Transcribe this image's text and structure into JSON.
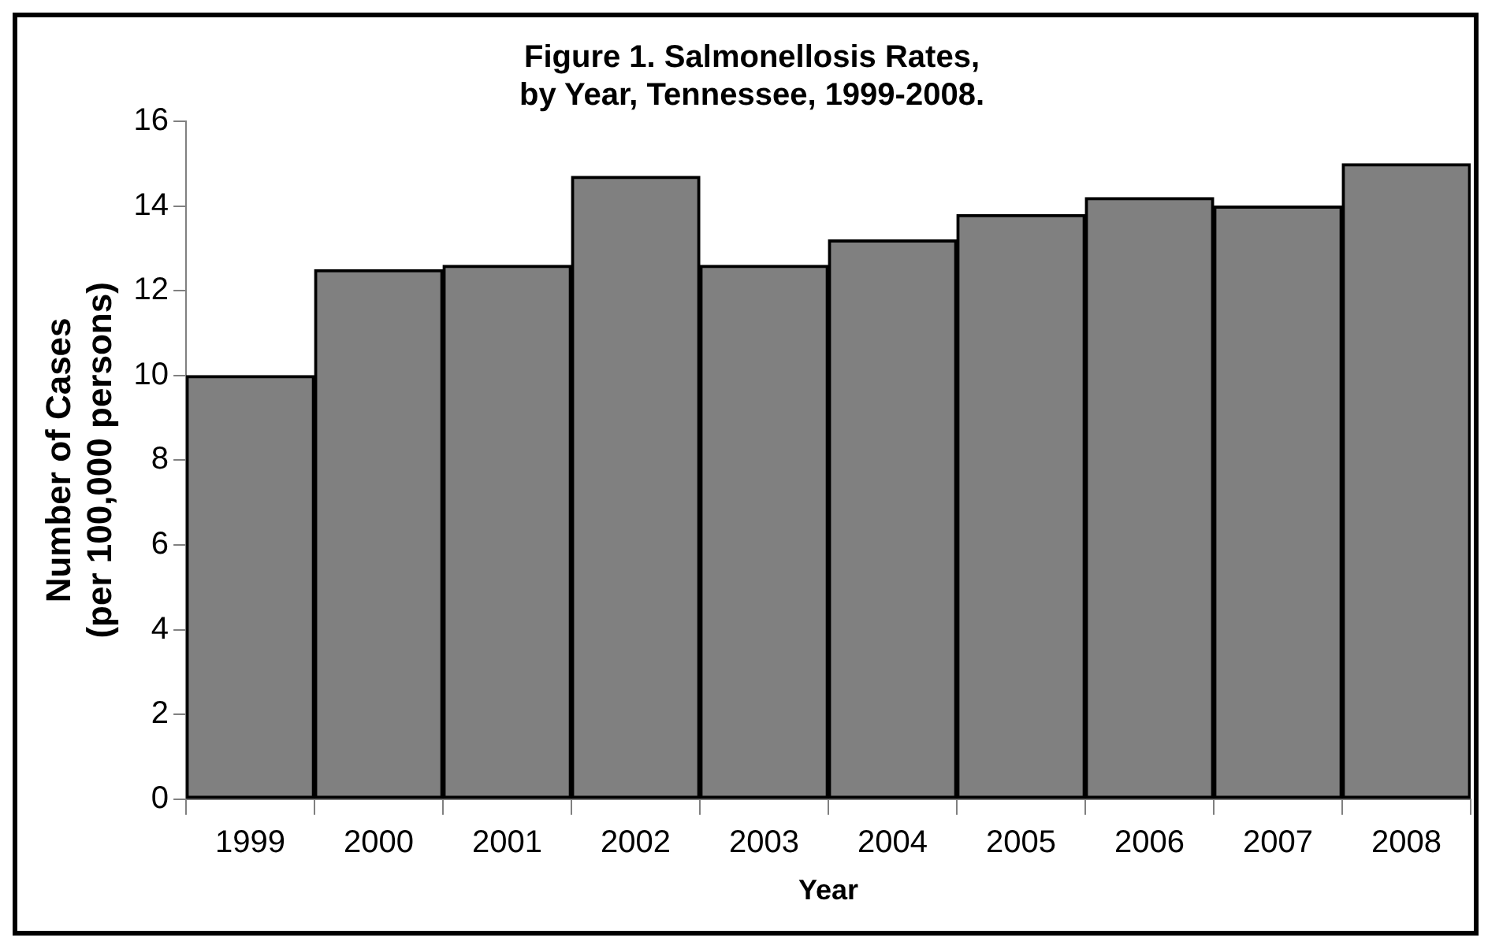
{
  "chart_data": {
    "type": "bar",
    "title": "Figure 1. Salmonellosis Rates,\nby Year, Tennessee, 1999-2008.",
    "xlabel": "Year",
    "ylabel": "Number of Cases\n(per 100,000 persons)",
    "categories": [
      "1999",
      "2000",
      "2001",
      "2002",
      "2003",
      "2004",
      "2005",
      "2006",
      "2007",
      "2008"
    ],
    "values": [
      10.0,
      12.5,
      12.6,
      14.7,
      12.6,
      13.2,
      13.8,
      14.2,
      14.0,
      15.0
    ],
    "color": "#808080",
    "ylim": [
      0,
      16
    ],
    "yticks": [
      0,
      2,
      4,
      6,
      8,
      10,
      12,
      14,
      16
    ],
    "grid": false,
    "legend": false
  }
}
